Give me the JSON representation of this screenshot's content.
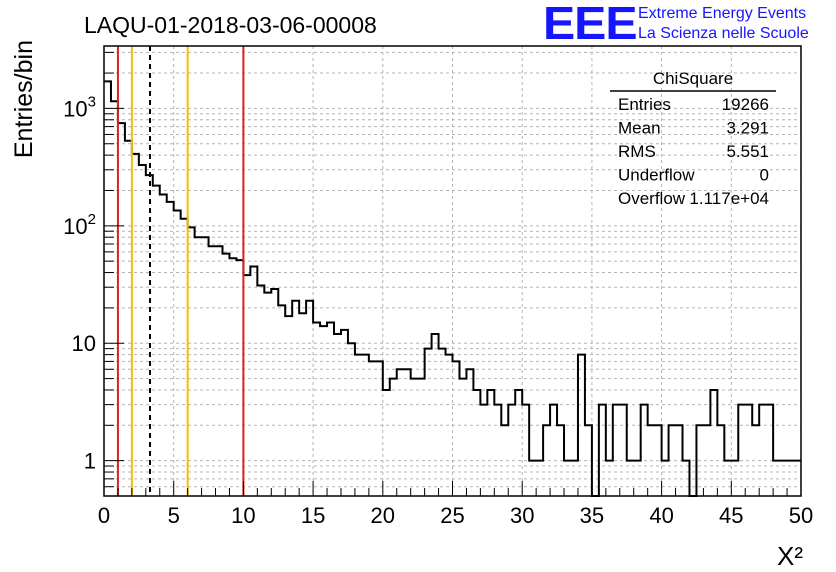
{
  "title": "LAQU-01-2018-03-06-00008",
  "brand": {
    "logo": "EEE",
    "line1": "Extreme Energy Events",
    "line2": "La Scienza nelle Scuole",
    "color": "#1515ff"
  },
  "stats_box": {
    "name": "ChiSquare",
    "rows": [
      {
        "label": "Entries",
        "value": "19266"
      },
      {
        "label": "Mean",
        "value": "3.291"
      },
      {
        "label": "RMS",
        "value": "5.551"
      },
      {
        "label": "Underflow",
        "value": "0"
      },
      {
        "label": "Overflow",
        "value": "1.117e+04"
      }
    ]
  },
  "chart_data": {
    "type": "histogram",
    "title": "LAQU-01-2018-03-06-00008",
    "xlabel": "X²",
    "ylabel": "Entries/bin",
    "xlim": [
      0,
      50
    ],
    "ylim": [
      0.5,
      3400
    ],
    "yscale": "log",
    "grid": true,
    "bin_width": 0.5,
    "xticks": [
      0,
      5,
      10,
      15,
      20,
      25,
      30,
      35,
      40,
      45,
      50
    ],
    "xtick_labels": [
      "0",
      "5",
      "10",
      "15",
      "20",
      "25",
      "30",
      "35",
      "40",
      "45",
      "50"
    ],
    "yticks": [
      1,
      10,
      100,
      1000
    ],
    "ytick_labels": [
      {
        "base": "1",
        "exp": ""
      },
      {
        "base": "10",
        "exp": ""
      },
      {
        "base": "10",
        "exp": "2"
      },
      {
        "base": "10",
        "exp": "3"
      }
    ],
    "values": [
      1700,
      1150,
      750,
      530,
      410,
      330,
      270,
      220,
      185,
      160,
      135,
      115,
      97,
      80,
      80,
      67,
      67,
      58,
      53,
      51,
      38,
      45,
      31,
      27,
      29,
      21,
      17,
      23,
      18,
      23,
      15,
      14,
      15,
      12,
      13,
      10,
      8,
      8,
      7,
      7,
      4,
      5,
      6,
      6,
      5,
      5,
      9,
      12,
      9,
      8,
      7,
      5,
      6,
      4,
      3,
      4,
      3,
      2,
      3,
      4,
      3,
      1,
      1,
      2,
      3,
      2,
      1,
      1,
      8,
      2,
      0,
      3,
      1,
      3,
      3,
      1,
      1,
      3,
      2,
      2,
      1,
      2,
      2,
      1,
      0,
      2,
      2,
      4,
      2,
      1,
      1,
      3,
      3,
      2,
      3,
      3,
      1,
      1,
      1,
      1,
      1
    ],
    "vertical_lines": [
      {
        "x": 1.0,
        "color": "#e02020",
        "style": "solid"
      },
      {
        "x": 2.0,
        "color": "#f0c000",
        "style": "solid"
      },
      {
        "x": 3.3,
        "color": "#000000",
        "style": "dashed"
      },
      {
        "x": 6.0,
        "color": "#f0c000",
        "style": "solid"
      },
      {
        "x": 10.0,
        "color": "#e02020",
        "style": "solid"
      }
    ]
  }
}
